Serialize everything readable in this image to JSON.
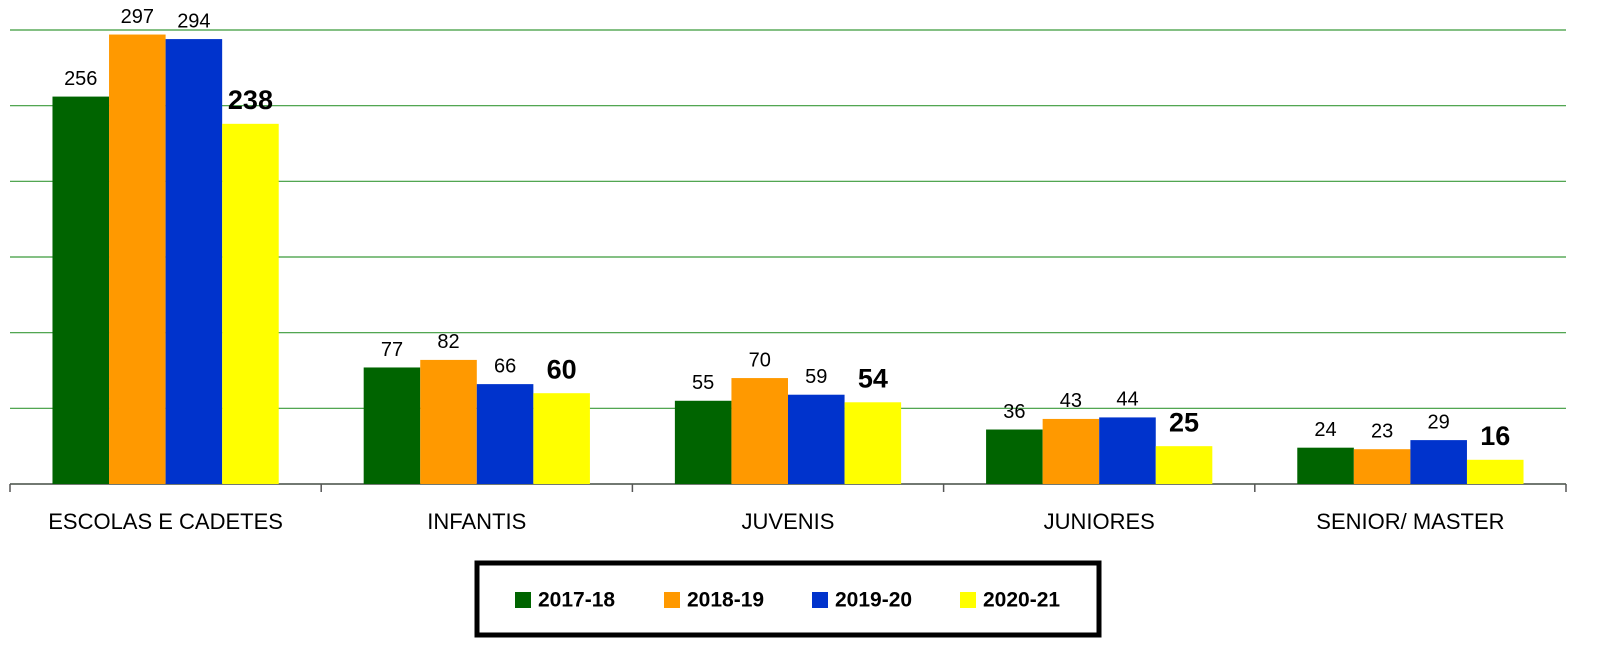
{
  "chart_data": {
    "type": "bar",
    "categories": [
      "ESCOLAS E CADETES",
      "INFANTIS",
      "JUVENIS",
      "JUNIORES",
      "SENIOR/ MASTER"
    ],
    "series": [
      {
        "name": "2017-18",
        "color": "#006400",
        "values": [
          256,
          77,
          55,
          36,
          24
        ]
      },
      {
        "name": "2018-19",
        "color": "#ff9900",
        "values": [
          297,
          82,
          70,
          43,
          23
        ]
      },
      {
        "name": "2019-20",
        "color": "#0033cc",
        "values": [
          294,
          66,
          59,
          44,
          29
        ]
      },
      {
        "name": "2020-21",
        "color": "#ffff00",
        "values": [
          238,
          60,
          54,
          25,
          16
        ]
      }
    ],
    "ylim": [
      0,
      300
    ],
    "yticks": [
      0,
      50,
      100,
      150,
      200,
      250,
      300
    ],
    "grid": true
  }
}
